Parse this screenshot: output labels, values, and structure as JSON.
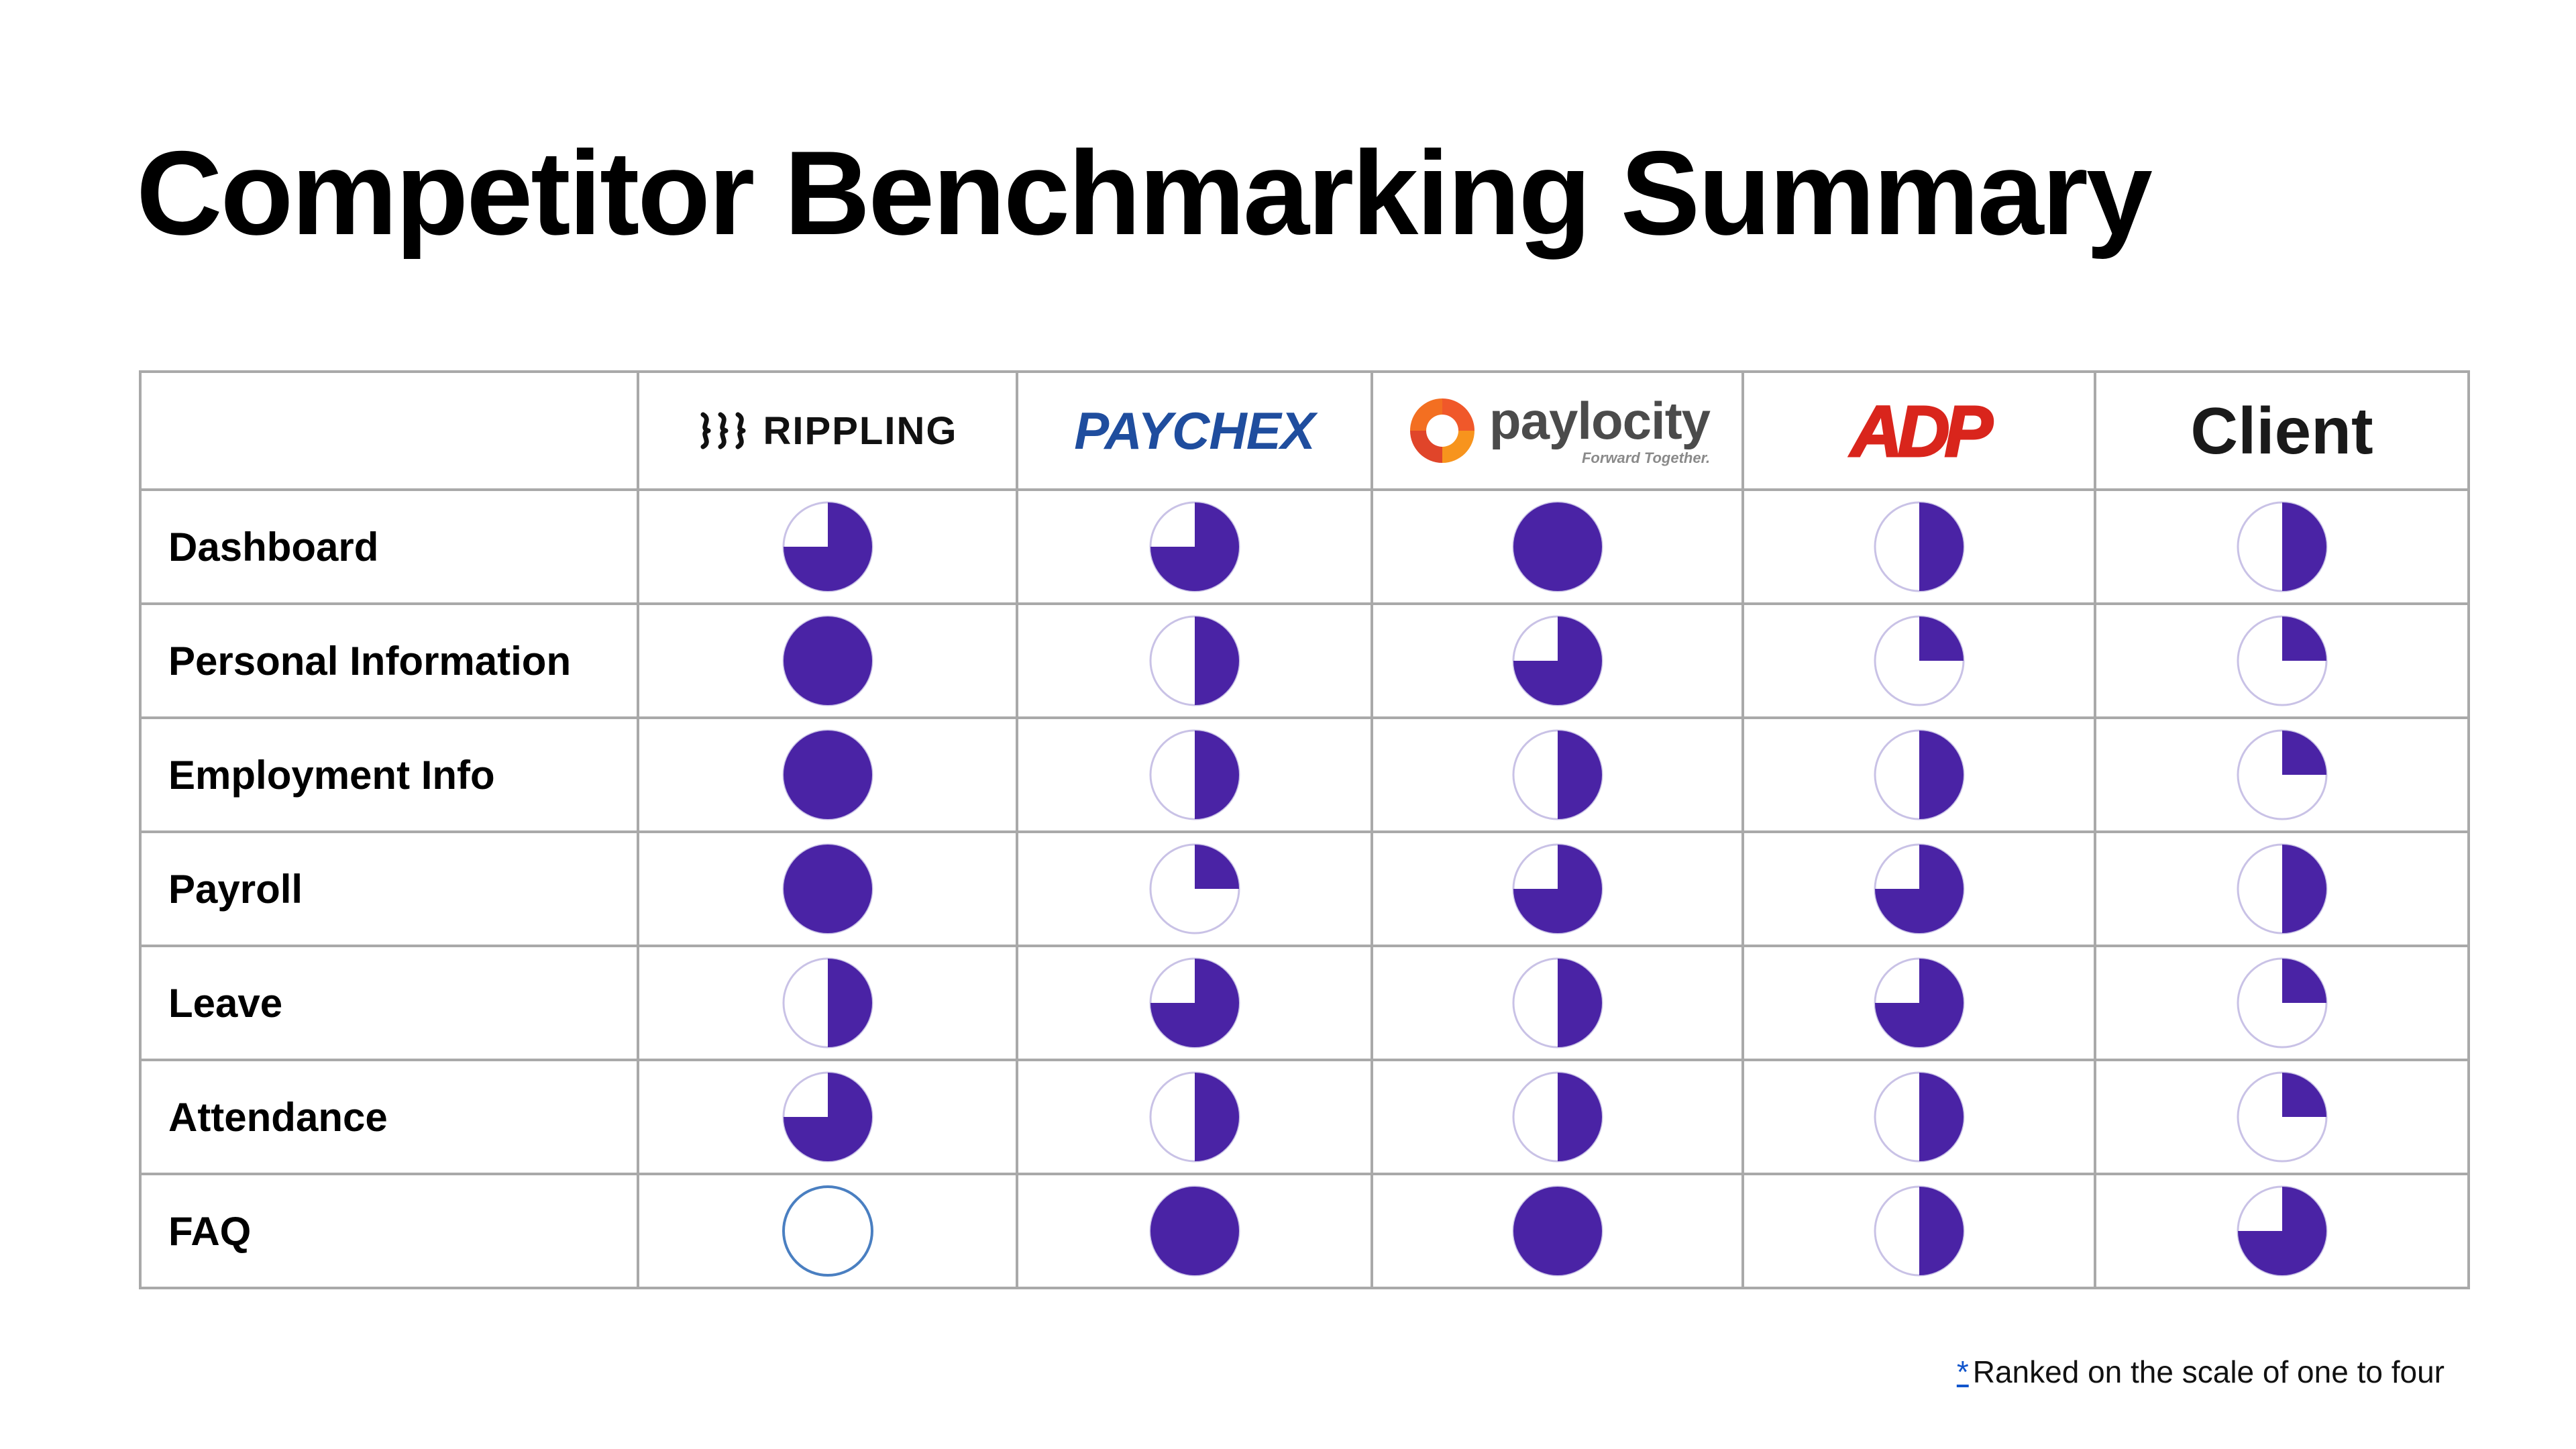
{
  "title": "Competitor Benchmarking Summary",
  "columns": [
    {
      "key": "rippling",
      "label": "RIPPLING",
      "logo_icon": "rippling-logo-icon",
      "color": "#111111"
    },
    {
      "key": "paychex",
      "label": "PAYCHEX",
      "logo_icon": "paychex-logo-icon",
      "color": "#1f4d9e"
    },
    {
      "key": "paylocity",
      "label": "paylocity",
      "tagline": "Forward Together.",
      "logo_icon": "paylocity-logo-icon",
      "color": "#4b4b4b"
    },
    {
      "key": "adp",
      "label": "ADP",
      "logo_icon": "adp-logo-icon",
      "color": "#d9251c"
    },
    {
      "key": "client",
      "label": "Client"
    }
  ],
  "rows": [
    {
      "label": "Dashboard",
      "scores": [
        3,
        3,
        4,
        2,
        2
      ]
    },
    {
      "label": "Personal Information",
      "scores": [
        4,
        2,
        3,
        1,
        1
      ]
    },
    {
      "label": "Employment Info",
      "scores": [
        4,
        2,
        2,
        2,
        1
      ]
    },
    {
      "label": "Payroll",
      "scores": [
        4,
        1,
        3,
        3,
        2
      ]
    },
    {
      "label": "Leave",
      "scores": [
        2,
        3,
        2,
        3,
        1
      ]
    },
    {
      "label": "Attendance",
      "scores": [
        3,
        2,
        2,
        2,
        1
      ]
    },
    {
      "label": "FAQ",
      "scores": [
        0,
        4,
        4,
        2,
        3
      ]
    }
  ],
  "scale_max": 4,
  "colors": {
    "fill": "#4a23a5",
    "empty_outline": "#c9c2e6",
    "zero_outline": "#4a7fc1",
    "grid": "#a9a9a9"
  },
  "footnote": {
    "marker": "*",
    "text": "Ranked on the scale of one to four"
  }
}
